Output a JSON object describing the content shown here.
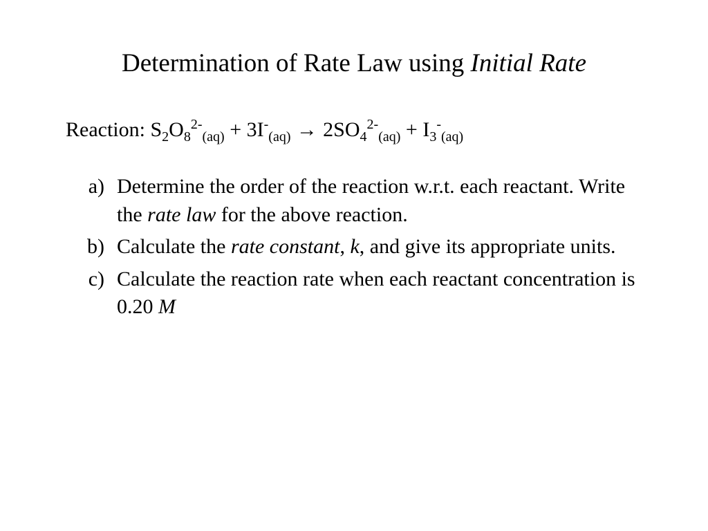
{
  "title": {
    "prefix": "Determination of Rate Law using ",
    "italic": "Initial Rate"
  },
  "reaction": {
    "label": "Reaction:   ",
    "r1_base": "S",
    "r1_sub1": "2",
    "r1_base2": "O",
    "r1_sub2": "8",
    "r1_sup": "2-",
    "r1_aq": "(aq)",
    "plus1": " + ",
    "r2_coef": "3",
    "r2_base": "I",
    "r2_sup": "-",
    "r2_aq": "(aq)",
    "arrow": "  →  ",
    "p1_coef": "2",
    "p1_base": "SO",
    "p1_sub": "4",
    "p1_sup": "2-",
    "p1_aq": "(aq)",
    "plus2": " + ",
    "p2_base": "I",
    "p2_sub": "3",
    "p2_sup": "-",
    "p2_aq": "(aq)"
  },
  "items": {
    "a": {
      "label": "a)",
      "t1": "Determine the order of the reaction w.r.t. each reactant. Write the ",
      "it1": "rate law",
      "t2": " for the above reaction."
    },
    "b": {
      "label": "b)",
      "t1": "Calculate the ",
      "it1": "rate constant",
      "t2": ", ",
      "it2": "k",
      "t3": ", and give its appropriate units."
    },
    "c": {
      "label": "c)",
      "t1": "Calculate the reaction rate when each reactant concentration is 0.20 ",
      "it1": "M"
    }
  },
  "style": {
    "background_color": "#ffffff",
    "text_color": "#000000",
    "font_family": "Times New Roman",
    "title_fontsize": 37,
    "body_fontsize": 30,
    "subscript_fontsize": 20
  }
}
